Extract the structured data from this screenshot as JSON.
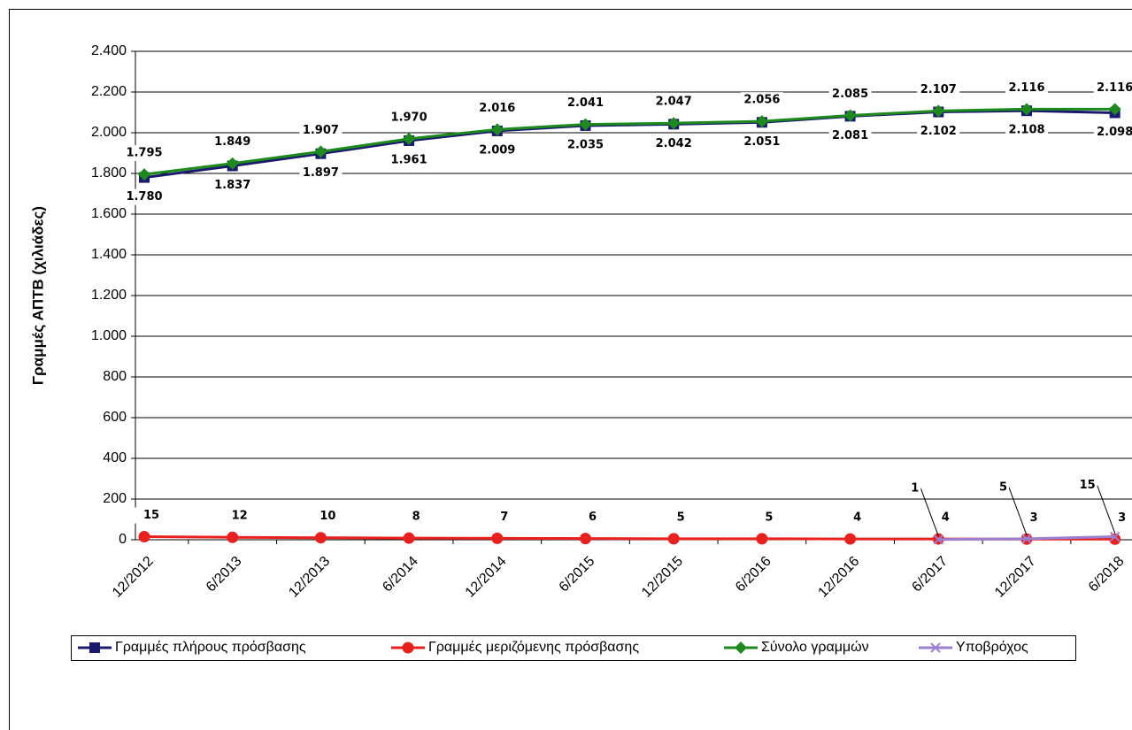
{
  "chart_data": {
    "type": "line",
    "y_label": "Γραμμές ΑΠΤΒ (χιλιάδες)",
    "categories": [
      "12/2012",
      "6/2013",
      "12/2013",
      "6/2014",
      "12/2014",
      "6/2015",
      "12/2015",
      "6/2016",
      "12/2016",
      "6/2017",
      "12/2017",
      "6/2018"
    ],
    "series": [
      {
        "name": "Γραμμές πλήρους πρόσβασης",
        "color": "#1a1a6e",
        "marker": "square",
        "values": [
          1780,
          1837,
          1897,
          1961,
          2009,
          2035,
          2042,
          2051,
          2081,
          2102,
          2108,
          2098
        ],
        "value_labels": [
          "1.780",
          "1.837",
          "1.897",
          "1.961",
          "2.009",
          "2.035",
          "2.042",
          "2.051",
          "2.081",
          "2.102",
          "2.108",
          "2.098"
        ]
      },
      {
        "name": "Γραμμές μεριζόμενης πρόσβασης",
        "color": "#e8201e",
        "marker": "circle",
        "values": [
          15,
          12,
          10,
          8,
          7,
          6,
          5,
          5,
          4,
          4,
          3,
          3
        ]
      },
      {
        "name": "Σύνολο γραμμών",
        "color": "#1e8a1e",
        "marker": "diamond",
        "values": [
          1795,
          1849,
          1907,
          1970,
          2016,
          2041,
          2047,
          2056,
          2085,
          2107,
          2116,
          2116
        ],
        "value_labels": [
          "1.795",
          "1.849",
          "1.907",
          "1.970",
          "2.016",
          "2.041",
          "2.047",
          "2.056",
          "2.085",
          "2.107",
          "2.116",
          "2.116"
        ]
      },
      {
        "name": "Υποβρόχος",
        "color": "#9b7fd0",
        "marker": "cross",
        "values": [
          null,
          null,
          null,
          null,
          null,
          null,
          null,
          null,
          null,
          1,
          5,
          15
        ]
      }
    ],
    "ylim": [
      0,
      2400
    ],
    "yticks": [
      0,
      200,
      400,
      600,
      800,
      {
        "value": 1000,
        "label": "1.000"
      },
      {
        "value": 1200,
        "label": "1.200"
      },
      {
        "value": 1400,
        "label": "1.400"
      },
      {
        "value": 1600,
        "label": "1.600"
      },
      {
        "value": 1800,
        "label": "1.800"
      },
      {
        "value": 2000,
        "label": "2.000"
      },
      {
        "value": 2200,
        "label": "2.200"
      },
      {
        "value": 2400,
        "label": "2.400"
      }
    ],
    "grid": true,
    "legend": "bottom"
  }
}
